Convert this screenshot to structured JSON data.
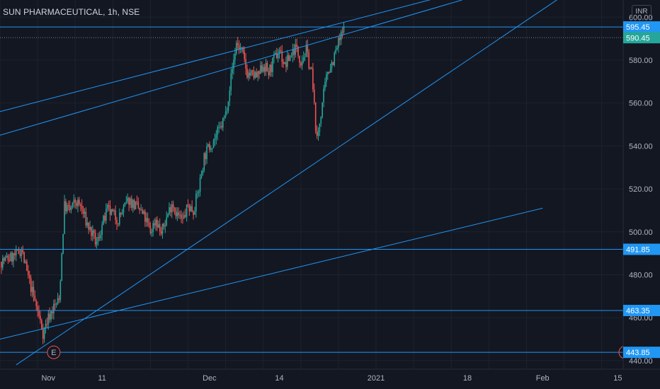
{
  "header": {
    "title": "SUN PHARMACEUTICAL, 1h, NSE",
    "currency": "INR"
  },
  "colors": {
    "background": "#131722",
    "up": "#26a69a",
    "down": "#ef5350",
    "lines": "#2196f3",
    "last_price": "#26a69a",
    "grid": "#1e222d",
    "earnings": "#ef5350"
  },
  "chart_data": {
    "type": "candlestick",
    "title": "SUN PHARMACEUTICAL, 1h, NSE",
    "ylim": [
      436,
      608
    ],
    "y_ticks": [
      440,
      460,
      480,
      500,
      520,
      540,
      560,
      580,
      600
    ],
    "y_tick_labels": [
      "440.00",
      "460.00",
      "480.00",
      "500.00",
      "520.00",
      "540.00",
      "560.00",
      "580.00",
      "600.00"
    ],
    "x_range": [
      "2020-10-23",
      "2021-02-16"
    ],
    "x_ticks": [
      {
        "date": "2020-11-01",
        "label": "Nov"
      },
      {
        "date": "2020-11-11",
        "label": "11"
      },
      {
        "date": "2020-12-01",
        "label": "Dec"
      },
      {
        "date": "2020-12-14",
        "label": "14"
      },
      {
        "date": "2021-01-01",
        "label": "2021"
      },
      {
        "date": "2021-01-18",
        "label": "18"
      },
      {
        "date": "2021-02-01",
        "label": "Feb"
      },
      {
        "date": "2021-02-15",
        "label": "15"
      }
    ],
    "grid": true,
    "last_price": 590.45,
    "price_levels": [
      595.45,
      491.85,
      463.35,
      443.85
    ],
    "price_level_labels": [
      "595.45",
      "491.85",
      "463.35",
      "443.85"
    ],
    "last_price_label": "590.45",
    "earnings_marker": {
      "date": "2020-11-02",
      "label": "E"
    },
    "trend_lines": [
      {
        "from": [
          "2020-10-23",
          545
        ],
        "to": [
          "2021-01-17",
          608
        ]
      },
      {
        "from": [
          "2020-10-23",
          556
        ],
        "to": [
          "2021-01-14",
          610
        ]
      },
      {
        "from": [
          "2020-10-26",
          438
        ],
        "to": [
          "2021-02-06",
          612
        ]
      },
      {
        "from": [
          "2020-10-23",
          450
        ],
        "to": [
          "2021-02-01",
          511
        ]
      }
    ],
    "price_path": [
      [
        "2020-10-23",
        486
      ],
      [
        "2020-10-26",
        489
      ],
      [
        "2020-10-27",
        492
      ],
      [
        "2020-10-28",
        481
      ],
      [
        "2020-10-29",
        472
      ],
      [
        "2020-10-30",
        463
      ],
      [
        "2020-10-31",
        453
      ],
      [
        "2020-11-01",
        460
      ],
      [
        "2020-11-02",
        465
      ],
      [
        "2020-11-03",
        468
      ],
      [
        "2020-11-04",
        512
      ],
      [
        "2020-11-05",
        510
      ],
      [
        "2020-11-06",
        514
      ],
      [
        "2020-11-07",
        512
      ],
      [
        "2020-11-08",
        505
      ],
      [
        "2020-11-10",
        494
      ],
      [
        "2020-11-11",
        503
      ],
      [
        "2020-11-12",
        510
      ],
      [
        "2020-11-14",
        506
      ],
      [
        "2020-11-16",
        515
      ],
      [
        "2020-11-18",
        510
      ],
      [
        "2020-11-19",
        506
      ],
      [
        "2020-11-20",
        500
      ],
      [
        "2020-11-21",
        506
      ],
      [
        "2020-11-22",
        499
      ],
      [
        "2020-11-24",
        514
      ],
      [
        "2020-11-25",
        508
      ],
      [
        "2020-11-26",
        505
      ],
      [
        "2020-11-27",
        512
      ],
      [
        "2020-11-28",
        510
      ],
      [
        "2020-11-29",
        520
      ],
      [
        "2020-11-30",
        535
      ],
      [
        "2020-12-01",
        540
      ],
      [
        "2020-12-02",
        544
      ],
      [
        "2020-12-03",
        548
      ],
      [
        "2020-12-04",
        555
      ],
      [
        "2020-12-05",
        572
      ],
      [
        "2020-12-06",
        588
      ],
      [
        "2020-12-07",
        584
      ],
      [
        "2020-12-08",
        574
      ],
      [
        "2020-12-10",
        572
      ],
      [
        "2020-12-11",
        578
      ],
      [
        "2020-12-12",
        574
      ],
      [
        "2020-12-13",
        580
      ],
      [
        "2020-12-14",
        585
      ],
      [
        "2020-12-15",
        577
      ],
      [
        "2020-12-16",
        582
      ],
      [
        "2020-12-17",
        586
      ],
      [
        "2020-12-18",
        580
      ],
      [
        "2020-12-19",
        584
      ],
      [
        "2020-12-20",
        574
      ],
      [
        "2020-12-21",
        542
      ],
      [
        "2020-12-22",
        560
      ],
      [
        "2020-12-23",
        575
      ],
      [
        "2020-12-24",
        580
      ],
      [
        "2020-12-25",
        588
      ],
      [
        "2020-12-26",
        594
      ]
    ]
  }
}
